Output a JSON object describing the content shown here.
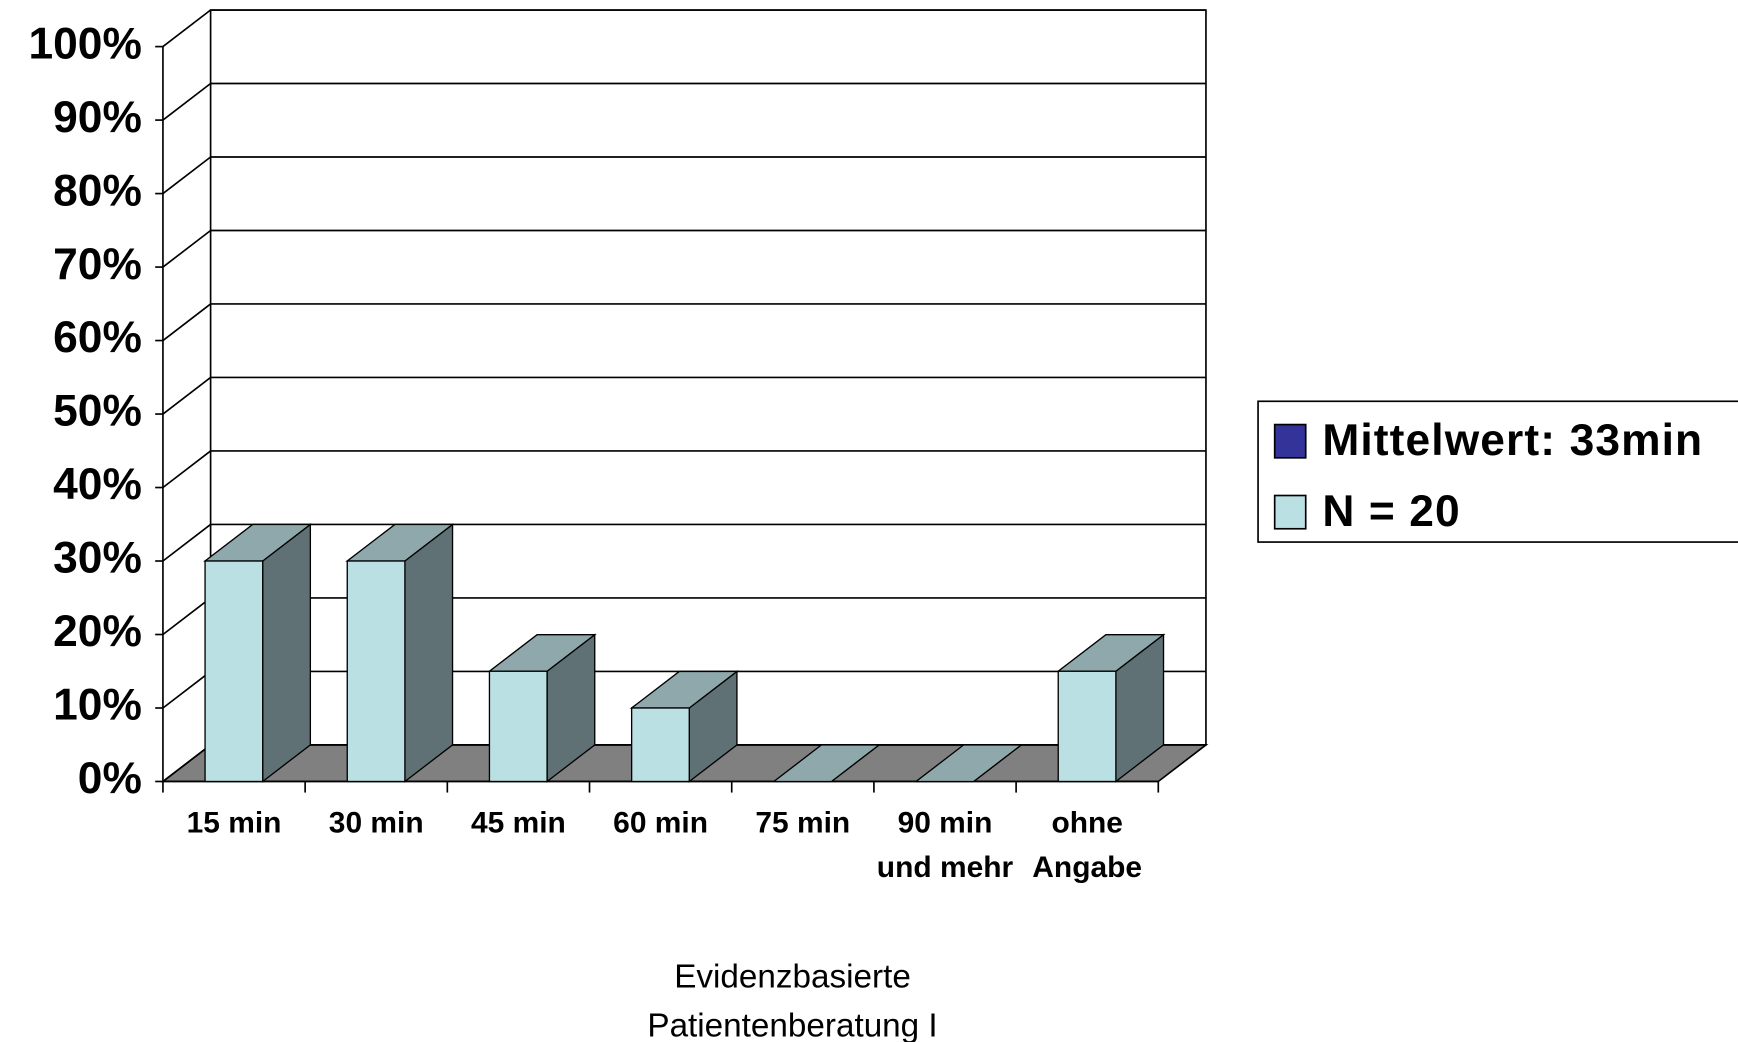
{
  "chart_data": {
    "type": "bar3d",
    "categories": [
      "15 min",
      "30 min",
      "45 min",
      "60 min",
      "75 min",
      "90 min und mehr",
      "ohne Angabe"
    ],
    "series": [
      {
        "name": "Mittelwert: 33min",
        "color": "#333399",
        "values": [
          null,
          null,
          null,
          null,
          null,
          null,
          null
        ]
      },
      {
        "name": "N = 20",
        "color": "#bbe0e3",
        "values": [
          30,
          30,
          15,
          10,
          0,
          0,
          15
        ]
      }
    ],
    "x_label": "Evidenzbasierte Patientenberatung I",
    "ylim": [
      0,
      100
    ],
    "yticks": [
      {
        "value": 0,
        "label": "0%"
      },
      {
        "value": 10,
        "label": "10%"
      },
      {
        "value": 20,
        "label": "20%"
      },
      {
        "value": 30,
        "label": "30%"
      },
      {
        "value": 40,
        "label": "40%"
      },
      {
        "value": 50,
        "label": "50%"
      },
      {
        "value": 60,
        "label": "60%"
      },
      {
        "value": 70,
        "label": "70%"
      },
      {
        "value": 80,
        "label": "80%"
      },
      {
        "value": 90,
        "label": "90%"
      },
      {
        "value": 100,
        "label": "100%"
      }
    ],
    "grid": true,
    "legend": "right"
  }
}
